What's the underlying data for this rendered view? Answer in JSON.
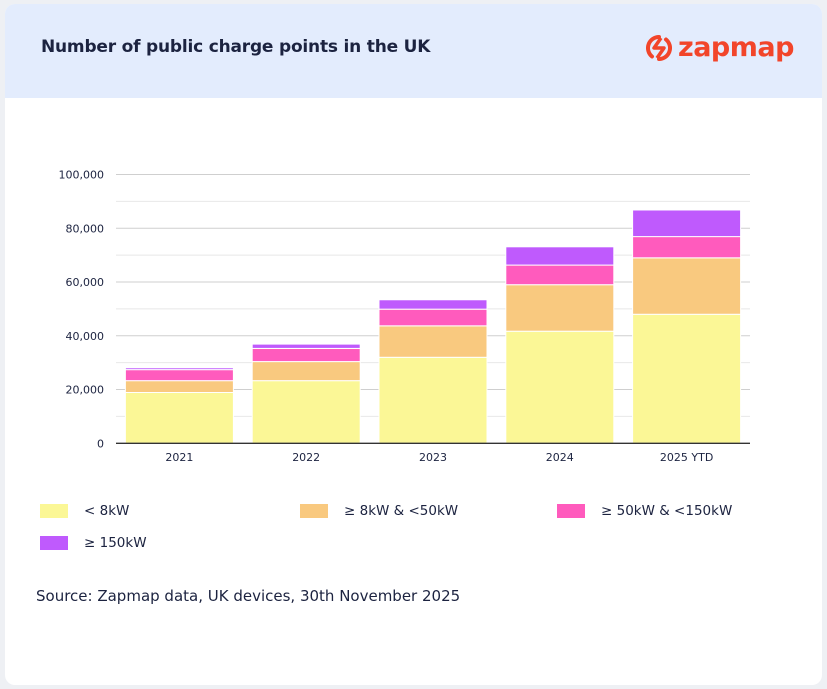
{
  "header": {
    "title": "Number of public charge points in the UK",
    "logo_text": "zapmap",
    "brand_color": "#f2452a"
  },
  "chart_data": {
    "type": "bar",
    "stacked": true,
    "categories": [
      "2021",
      "2022",
      "2023",
      "2024",
      "2025 YTD"
    ],
    "series": [
      {
        "name": "< 8kW",
        "color": "#fbf796",
        "values": [
          18900,
          23300,
          32000,
          41700,
          48000
        ]
      },
      {
        "name": "≥ 8kW & <50kW",
        "color": "#f9c97f",
        "values": [
          4400,
          7100,
          11700,
          17300,
          21000
        ]
      },
      {
        "name": "≥ 50kW & <150kW",
        "color": "#ff5bbd",
        "values": [
          4100,
          4900,
          6200,
          7300,
          7900
        ]
      },
      {
        "name": "≥ 150kW",
        "color": "#bf5afd",
        "values": [
          700,
          1600,
          3500,
          6800,
          9900
        ]
      }
    ],
    "ylim": [
      0,
      100000
    ],
    "yticks": [
      "0",
      "20,000",
      "40,000",
      "60,000",
      "80,000",
      "100,000"
    ],
    "grid": true,
    "legend_position": "bottom",
    "title": "Number of public charge points in the UK"
  },
  "source": "Source: Zapmap data, UK devices, 30th November 2025"
}
